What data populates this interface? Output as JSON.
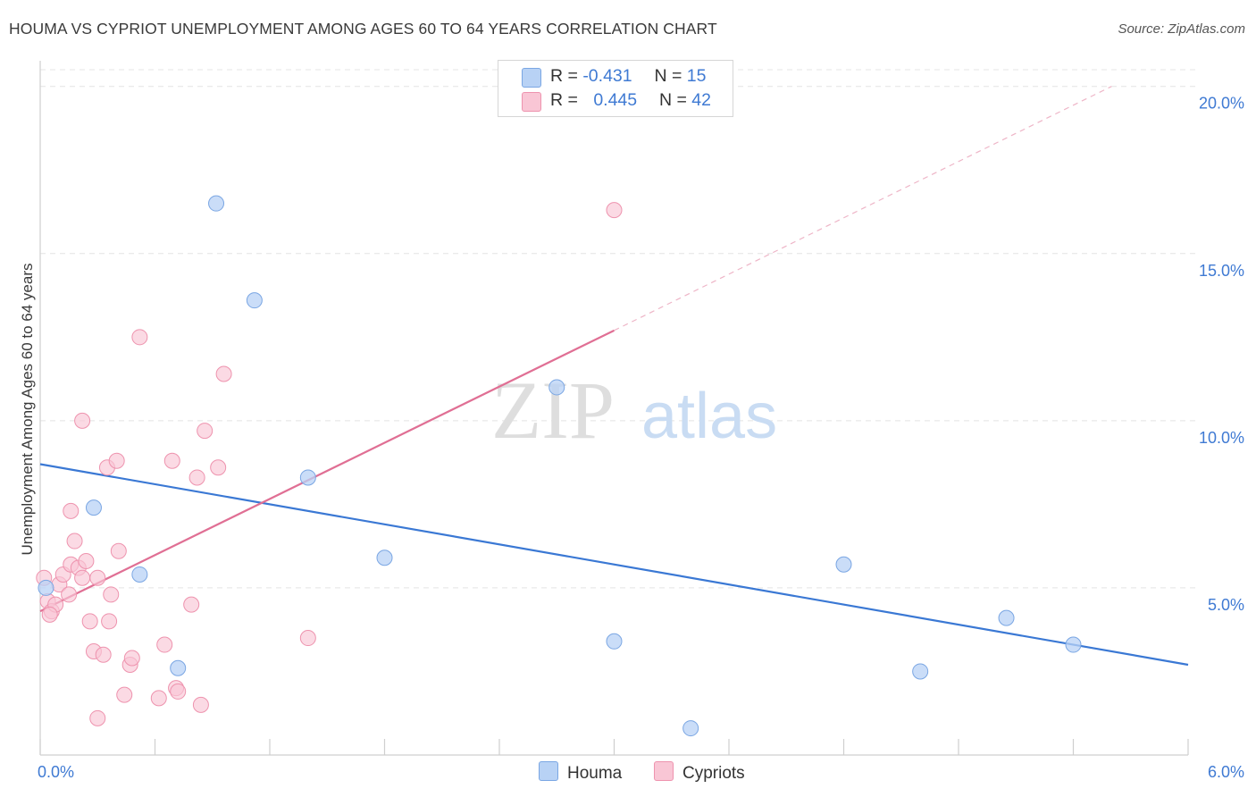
{
  "title": "HOUMA VS CYPRIOT UNEMPLOYMENT AMONG AGES 60 TO 64 YEARS CORRELATION CHART",
  "source": "Source: ZipAtlas.com",
  "watermark": {
    "zip": "ZIP",
    "atlas": "atlas"
  },
  "legend": {
    "houma": {
      "r_label": "R =",
      "r_value": "-0.431",
      "n_label": "N =",
      "n_value": "15",
      "name": "Houma"
    },
    "cypriots": {
      "r_label": "R =",
      "r_value": "0.445",
      "n_label": "N =",
      "n_value": "42",
      "name": "Cypriots"
    }
  },
  "colors": {
    "houma_fill": "#b8d2f5",
    "houma_stroke": "#7aa6e3",
    "houma_line": "#3a78d4",
    "cypriots_fill": "#f9c6d5",
    "cypriots_stroke": "#ee93ae",
    "cypriots_line": "#e06f94",
    "axis_text": "#3f7ad3",
    "grid": "#e4e4e4"
  },
  "chart_data": {
    "type": "scatter",
    "ylabel": "Unemployment Among Ages 60 to 64 years",
    "xlim": [
      0,
      6
    ],
    "ylim": [
      0,
      20.5
    ],
    "x_tick_labels": [
      {
        "value": 0,
        "label": "0.0%"
      },
      {
        "value": 6,
        "label": "6.0%"
      }
    ],
    "y_tick_labels": [
      {
        "value": 5,
        "label": "5.0%"
      },
      {
        "value": 10,
        "label": "10.0%"
      },
      {
        "value": 15,
        "label": "15.0%"
      },
      {
        "value": 20,
        "label": "20.0%"
      }
    ],
    "series": [
      {
        "name": "Houma",
        "points": [
          [
            0.03,
            5.0
          ],
          [
            0.28,
            7.4
          ],
          [
            0.52,
            5.4
          ],
          [
            0.72,
            2.6
          ],
          [
            0.92,
            16.5
          ],
          [
            1.12,
            13.6
          ],
          [
            1.4,
            8.3
          ],
          [
            1.8,
            5.9
          ],
          [
            2.7,
            11.0
          ],
          [
            3.0,
            3.4
          ],
          [
            3.4,
            0.8
          ],
          [
            4.2,
            5.7
          ],
          [
            4.6,
            2.5
          ],
          [
            5.05,
            4.1
          ],
          [
            5.4,
            3.3
          ]
        ],
        "trend": {
          "x": [
            0,
            6
          ],
          "y": [
            8.7,
            2.7
          ]
        }
      },
      {
        "name": "Cypriots",
        "points": [
          [
            0.02,
            5.3
          ],
          [
            0.04,
            4.6
          ],
          [
            0.06,
            4.3
          ],
          [
            0.08,
            4.5
          ],
          [
            0.1,
            5.1
          ],
          [
            0.12,
            5.4
          ],
          [
            0.15,
            4.8
          ],
          [
            0.16,
            5.7
          ],
          [
            0.16,
            7.3
          ],
          [
            0.18,
            6.4
          ],
          [
            0.2,
            5.6
          ],
          [
            0.22,
            5.3
          ],
          [
            0.22,
            10.0
          ],
          [
            0.24,
            5.8
          ],
          [
            0.26,
            4.0
          ],
          [
            0.28,
            3.1
          ],
          [
            0.3,
            1.1
          ],
          [
            0.3,
            5.3
          ],
          [
            0.33,
            3.0
          ],
          [
            0.35,
            8.6
          ],
          [
            0.36,
            4.0
          ],
          [
            0.37,
            4.8
          ],
          [
            0.4,
            8.8
          ],
          [
            0.41,
            6.1
          ],
          [
            0.44,
            1.8
          ],
          [
            0.47,
            2.7
          ],
          [
            0.48,
            2.9
          ],
          [
            0.52,
            12.5
          ],
          [
            0.62,
            1.7
          ],
          [
            0.65,
            3.3
          ],
          [
            0.69,
            8.8
          ],
          [
            0.71,
            2.0
          ],
          [
            0.72,
            1.9
          ],
          [
            0.79,
            4.5
          ],
          [
            0.82,
            8.3
          ],
          [
            0.84,
            1.5
          ],
          [
            0.86,
            9.7
          ],
          [
            0.93,
            8.6
          ],
          [
            0.96,
            11.4
          ],
          [
            1.4,
            3.5
          ],
          [
            3.0,
            16.3
          ],
          [
            0.05,
            4.2
          ]
        ],
        "trend": {
          "x": [
            0,
            3.0
          ],
          "y": [
            4.3,
            12.7
          ]
        },
        "trend_dashed": {
          "x": [
            3.0,
            5.6
          ],
          "y": [
            12.7,
            20.0
          ]
        }
      }
    ]
  }
}
